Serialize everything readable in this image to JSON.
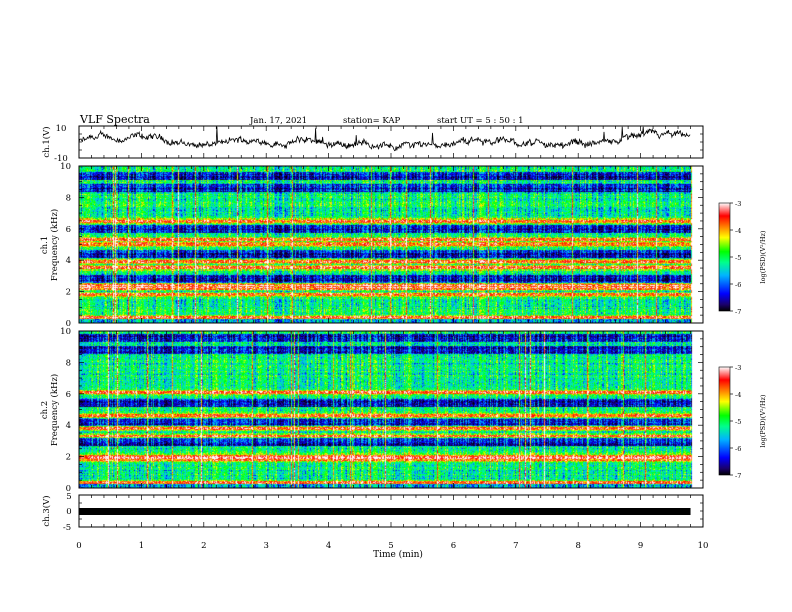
{
  "header": {
    "title": "VLF Spectra",
    "date": "Jan. 17, 2021",
    "station": "station= KAP",
    "start": "start  UT  =  5 : 50 : 1"
  },
  "colorbar": {
    "label": "log(PSD)(V²/Hz)",
    "ticks": [
      "-3",
      "-4",
      "-5",
      "-6",
      "-7"
    ]
  },
  "chart_data": [
    {
      "type": "line",
      "panel": "ch1-waveform",
      "ylabel": "ch.1(V)",
      "ylim": [
        -10,
        10
      ],
      "yticks": [
        "10",
        "-10"
      ],
      "description_series": "noisy voltage trace around 0 V"
    },
    {
      "type": "heatmap",
      "panel": "ch1-spectrogram",
      "ylabel_line1": "ch.1",
      "ylabel_line2": "Frequency (kHz)",
      "ylim": [
        0,
        10
      ],
      "yticks": [
        "0",
        "2",
        "4",
        "6",
        "8",
        "10"
      ],
      "strong_bands_khz": [
        0.3,
        1.8,
        2.2,
        2.4,
        3.5,
        3.9,
        5.0,
        5.3,
        6.5
      ],
      "quiet_bands_khz": [
        2.8,
        4.4,
        6.0,
        8.6,
        9.4
      ],
      "zrange_log_psd": [
        -7,
        -3
      ]
    },
    {
      "type": "heatmap",
      "panel": "ch2-spectrogram",
      "ylabel_line1": "ch.2",
      "ylabel_line2": "Frequency (kHz)",
      "ylim": [
        0,
        10
      ],
      "yticks": [
        "0",
        "2",
        "4",
        "6",
        "8",
        "10"
      ],
      "strong_bands_khz": [
        0.3,
        1.8,
        2.0,
        3.3,
        3.8,
        4.6,
        6.1
      ],
      "quiet_bands_khz": [
        2.9,
        4.2,
        5.4,
        8.8,
        9.6
      ],
      "zrange_log_psd": [
        -7,
        -3
      ]
    },
    {
      "type": "line",
      "panel": "ch3-waveform",
      "ylabel": "ch.3(V)",
      "ylim": [
        -5,
        5
      ],
      "yticks": [
        "5",
        "0",
        "-5"
      ],
      "description_series": "thick flat signal near -0.5 V"
    }
  ],
  "xaxis": {
    "label": "Time (min)",
    "xlim": [
      0,
      10
    ],
    "ticks": [
      "0",
      "1",
      "2",
      "3",
      "4",
      "5",
      "6",
      "7",
      "8",
      "9",
      "10"
    ],
    "data_end_min": 9.8
  },
  "colors": {
    "colormap": [
      "#1a006b",
      "#0000ff",
      "#00b4ff",
      "#00ff8c",
      "#00ff00",
      "#ffff00",
      "#ff8000",
      "#ff0000",
      "#ffffff"
    ]
  }
}
